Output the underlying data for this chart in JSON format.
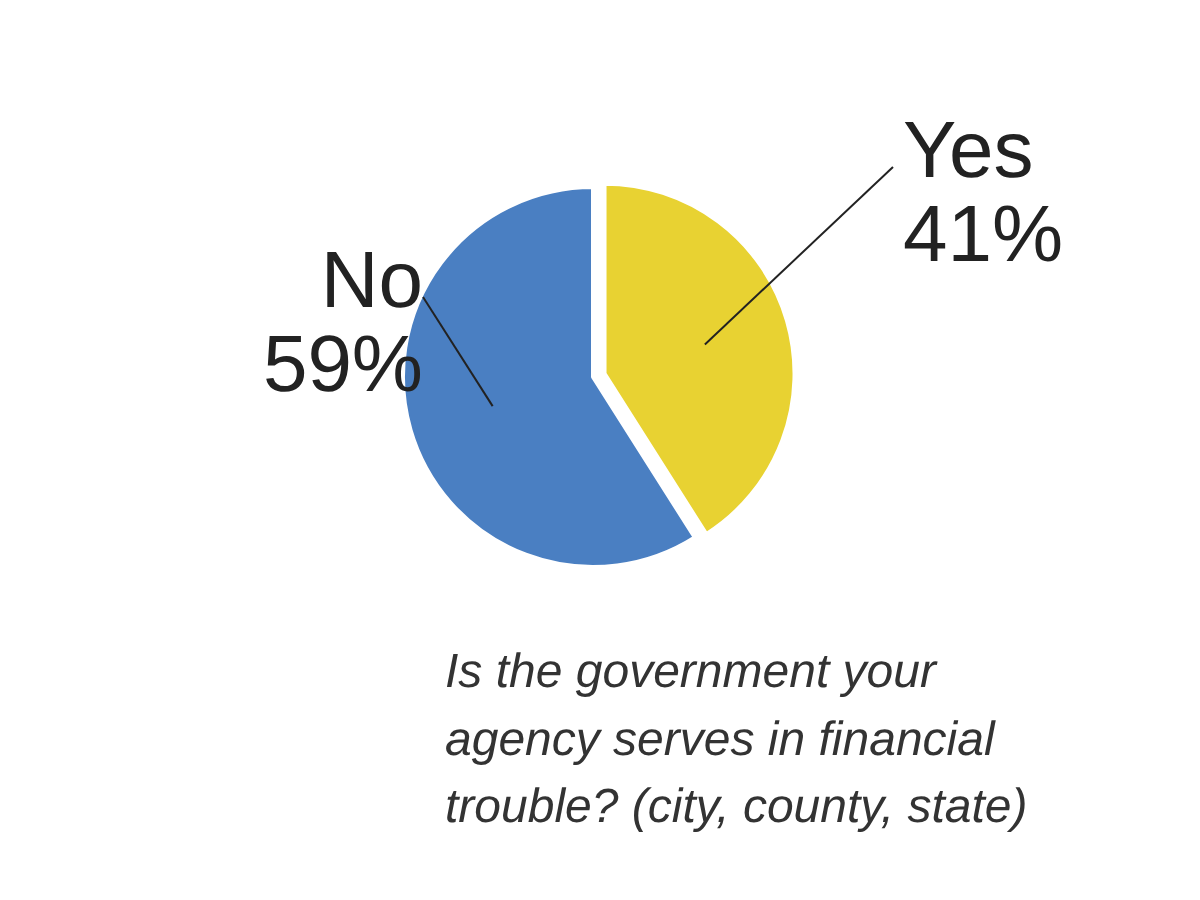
{
  "chart_data": {
    "type": "pie",
    "title": "Is the government your\nagency serves in financial\ntrouble? (city, county, state)",
    "categories": [
      "Yes",
      "No"
    ],
    "values": [
      41,
      59
    ],
    "colors": [
      "#e8d232",
      "#4a7fc2"
    ],
    "value_labels": [
      "41%",
      "59%"
    ]
  }
}
